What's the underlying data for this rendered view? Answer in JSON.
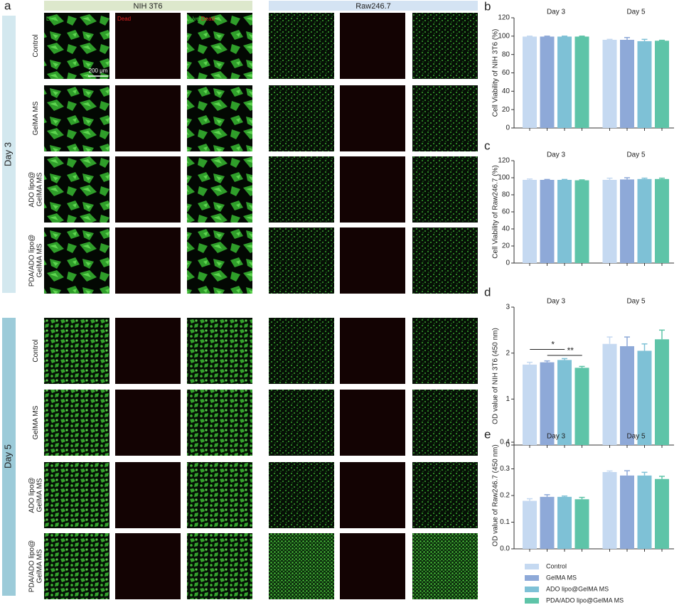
{
  "panel_a": {
    "label": "a",
    "headers": [
      "NIH 3T6",
      "Raw246.7"
    ],
    "overlay": {
      "live": "Live",
      "dead": "Dead",
      "merge_live": "Live/",
      "merge_dead": "Dead"
    },
    "scale_bar": "200 μm",
    "days": [
      {
        "label": "Day 3",
        "rows": [
          [
            "Control"
          ],
          [
            "GelMA MS"
          ],
          [
            "ADO lipo@",
            "GelMA MS"
          ],
          [
            "PDA/ADO lipo@",
            "GelMA MS"
          ]
        ]
      },
      {
        "label": "Day 5",
        "rows": [
          [
            "Control"
          ],
          [
            "GelMA MS"
          ],
          [
            "ADO lipo@",
            "GelMA MS"
          ],
          [
            "PDA/ADO lipo@",
            "GelMA MS"
          ]
        ]
      }
    ]
  },
  "chart_data": [
    {
      "type": "bar",
      "panel": "b",
      "ylabel": "Cell Viability of NIH 3T6 (%)",
      "categories": [
        "Day 3",
        "Day 5"
      ],
      "series": [
        {
          "color": "#c5d9f1",
          "values": [
            99.5,
            96
          ],
          "errors": [
            0.5,
            0.5
          ]
        },
        {
          "color": "#8ea9d8",
          "values": [
            99.5,
            96
          ],
          "errors": [
            0.5,
            2.5
          ]
        },
        {
          "color": "#7ec1d6",
          "values": [
            99.5,
            94.5
          ],
          "errors": [
            0.5,
            2
          ]
        },
        {
          "color": "#5ec4a8",
          "values": [
            99.5,
            95
          ],
          "errors": [
            0.5,
            0.5
          ]
        }
      ],
      "ylim": [
        0,
        120
      ],
      "yticks": [
        0,
        20,
        40,
        60,
        80,
        100,
        120
      ]
    },
    {
      "type": "bar",
      "panel": "c",
      "ylabel": "Cell Viability of Raw246.7 (%)",
      "categories": [
        "Day 3",
        "Day 5"
      ],
      "series": [
        {
          "color": "#c5d9f1",
          "values": [
            97.5,
            97.5
          ],
          "errors": [
            1,
            2
          ]
        },
        {
          "color": "#8ea9d8",
          "values": [
            97.5,
            98
          ],
          "errors": [
            0.5,
            2
          ]
        },
        {
          "color": "#7ec1d6",
          "values": [
            97.5,
            98.5
          ],
          "errors": [
            0.5,
            1
          ]
        },
        {
          "color": "#5ec4a8",
          "values": [
            97,
            98.5
          ],
          "errors": [
            0.5,
            1
          ]
        }
      ],
      "ylim": [
        0,
        120
      ],
      "yticks": [
        0,
        20,
        40,
        60,
        80,
        100,
        120
      ]
    },
    {
      "type": "bar",
      "panel": "d",
      "ylabel": "OD value of NIH 3T6 (450 nm)",
      "categories": [
        "Day 3",
        "Day 5"
      ],
      "series": [
        {
          "color": "#c5d9f1",
          "values": [
            1.75,
            2.2
          ],
          "errors": [
            0.05,
            0.15
          ]
        },
        {
          "color": "#8ea9d8",
          "values": [
            1.8,
            2.15
          ],
          "errors": [
            0.03,
            0.2
          ]
        },
        {
          "color": "#7ec1d6",
          "values": [
            1.85,
            2.05
          ],
          "errors": [
            0.03,
            0.15
          ]
        },
        {
          "color": "#5ec4a8",
          "values": [
            1.68,
            2.3
          ],
          "errors": [
            0.03,
            0.2
          ]
        }
      ],
      "annotations": [
        "*",
        "**"
      ],
      "ylim": [
        0,
        3
      ],
      "yticks": [
        0,
        1,
        2,
        3
      ]
    },
    {
      "type": "bar",
      "panel": "e",
      "ylabel": "OD value of Raw246.7 (450 nm)",
      "categories": [
        "Day 3",
        "Day 5"
      ],
      "series": [
        {
          "name": "Control",
          "color": "#c5d9f1",
          "values": [
            0.18,
            0.288
          ],
          "errors": [
            0.008,
            0.004
          ]
        },
        {
          "name": "GelMA MS",
          "color": "#8ea9d8",
          "values": [
            0.195,
            0.275
          ],
          "errors": [
            0.008,
            0.018
          ]
        },
        {
          "name": "ADO lipo@GelMA MS",
          "color": "#7ec1d6",
          "values": [
            0.195,
            0.275
          ],
          "errors": [
            0.003,
            0.012
          ]
        },
        {
          "name": "PDA/ADO lipo@GelMA MS",
          "color": "#5ec4a8",
          "values": [
            0.186,
            0.262
          ],
          "errors": [
            0.007,
            0.01
          ]
        }
      ],
      "ylim": [
        0,
        0.4
      ],
      "yticks": [
        {
          "value": 0,
          "label": "0.0"
        },
        0.1,
        0.2,
        0.3,
        0.4
      ]
    }
  ]
}
